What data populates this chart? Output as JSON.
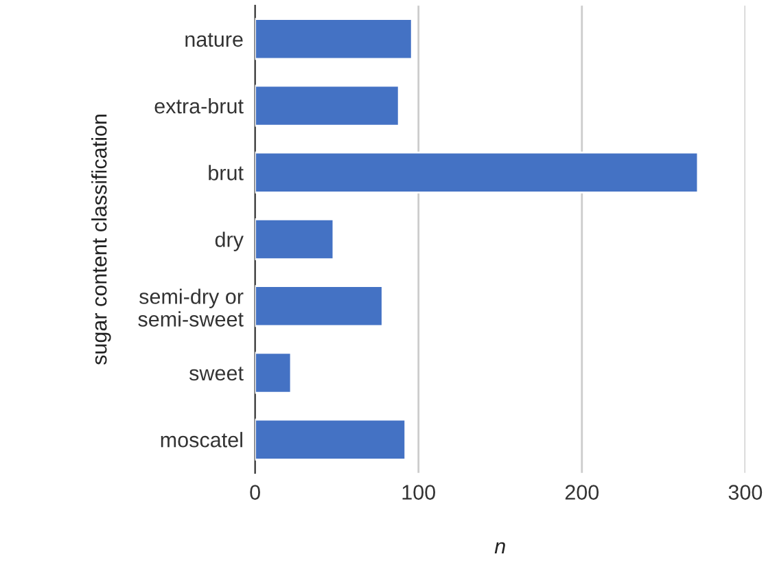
{
  "chart_data": {
    "type": "bar",
    "orientation": "horizontal",
    "xlabel": "n",
    "ylabel": "sugar content classification",
    "categories": [
      "nature",
      "extra-brut",
      "brut",
      "dry",
      "semi-dry or\nsemi-sweet",
      "sweet",
      "moscatel"
    ],
    "values": [
      96,
      88,
      271,
      48,
      78,
      22,
      92
    ],
    "color": "#4472c4",
    "xlim": [
      0,
      300
    ],
    "xticks": [
      0,
      100,
      200,
      300
    ],
    "grid": "x"
  }
}
